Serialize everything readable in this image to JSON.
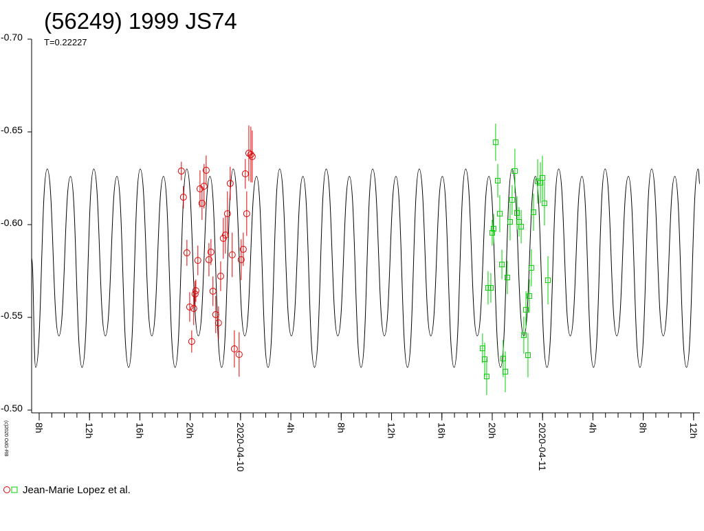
{
  "chart_data": {
    "type": "lightcurve",
    "title": "(56249) 1999 JS74",
    "subtitle": "T=0.22227",
    "credit": "(c)2020 OdG-RB",
    "xlim": [
      -16.6,
      36.5
    ],
    "ylim": [
      -0.5,
      -0.7
    ],
    "xticks": [
      {
        "value": -16,
        "label": "8h"
      },
      {
        "value": -12,
        "label": "12h"
      },
      {
        "value": -8,
        "label": "16h"
      },
      {
        "value": -4,
        "label": "20h"
      },
      {
        "value": 0,
        "label": "2020-04-10"
      },
      {
        "value": 4,
        "label": "4h"
      },
      {
        "value": 8,
        "label": "8h"
      },
      {
        "value": 12,
        "label": "12h"
      },
      {
        "value": 16,
        "label": "16h"
      },
      {
        "value": 20,
        "label": "20h"
      },
      {
        "value": 24,
        "label": "2020-04-11"
      },
      {
        "value": 28,
        "label": "4h"
      },
      {
        "value": 32,
        "label": "8h"
      },
      {
        "value": 36,
        "label": "12h"
      }
    ],
    "xminorticks": [
      -16,
      -15,
      -14,
      -13,
      -12,
      -11,
      -10,
      -9,
      -8,
      -7,
      -6,
      -5,
      -4,
      -3,
      -2,
      -1,
      0,
      1,
      2,
      3,
      4,
      5,
      6,
      7,
      8,
      9,
      10,
      11,
      12,
      13,
      14,
      15,
      16,
      17,
      18,
      19,
      20,
      21,
      22,
      23,
      24,
      25,
      26,
      27,
      28,
      29,
      30,
      31,
      32,
      33,
      34,
      35,
      36
    ],
    "yticks": [
      {
        "value": -0.7,
        "label": "-0.70"
      },
      {
        "value": -0.65,
        "label": "-0.65"
      },
      {
        "value": -0.6,
        "label": "-0.60"
      },
      {
        "value": -0.55,
        "label": "-0.55"
      },
      {
        "value": -0.5,
        "label": "-0.50"
      }
    ],
    "model": {
      "color": "#000000",
      "x": [
        -16.6,
        -16.28,
        -15.36,
        -14.43,
        -13.51,
        -12.59,
        -11.66,
        -10.74,
        -9.82,
        -8.89,
        -7.97,
        -7.05,
        -6.12,
        -5.2,
        -4.27,
        -3.35,
        -2.43,
        -1.5,
        -0.58,
        0.34,
        1.27,
        2.19,
        3.11,
        4.04,
        4.96,
        5.88,
        6.81,
        7.73,
        8.65,
        9.58,
        10.5,
        11.43,
        12.35,
        13.27,
        14.2,
        15.12,
        16.04,
        16.97,
        17.89,
        18.81,
        19.74,
        20.66,
        21.58,
        22.51,
        23.43,
        24.35,
        25.28,
        26.2,
        27.13,
        28.05,
        28.97,
        29.9,
        30.82,
        31.74,
        32.67,
        33.59,
        34.51,
        35.44,
        36.36,
        36.5
      ],
      "values": [
        -0.582,
        -0.523,
        -0.63,
        -0.54,
        -0.626,
        -0.523,
        -0.63,
        -0.54,
        -0.626,
        -0.523,
        -0.63,
        -0.54,
        -0.626,
        -0.523,
        -0.63,
        -0.54,
        -0.626,
        -0.523,
        -0.63,
        -0.54,
        -0.626,
        -0.523,
        -0.63,
        -0.54,
        -0.626,
        -0.523,
        -0.63,
        -0.54,
        -0.626,
        -0.523,
        -0.63,
        -0.54,
        -0.626,
        -0.523,
        -0.63,
        -0.54,
        -0.626,
        -0.523,
        -0.63,
        -0.54,
        -0.626,
        -0.523,
        -0.63,
        -0.54,
        -0.626,
        -0.523,
        -0.63,
        -0.54,
        -0.626,
        -0.523,
        -0.63,
        -0.54,
        -0.626,
        -0.523,
        -0.63,
        -0.54,
        -0.626,
        -0.523,
        -0.63,
        -0.622
      ]
    },
    "observations": {
      "name": "Jean-Marie Lopez et al.",
      "groups": [
        {
          "color": "#e00000",
          "marker": "circle",
          "x": [
            -4.7,
            -4.54,
            -4.26,
            -4.04,
            -3.88,
            -3.72,
            -3.61,
            -3.55,
            -3.39,
            -3.22,
            -3.06,
            -2.9,
            -2.73,
            -2.51,
            -2.35,
            -2.19,
            -1.97,
            -1.75,
            -1.58,
            -1.37,
            -1.2,
            -1.04,
            -0.82,
            -0.66,
            -0.49,
            -0.11,
            0.05,
            0.22,
            0.38,
            0.49,
            0.66,
            0.82,
            0.93
          ],
          "values": [
            -0.6289,
            -0.6148,
            -0.5848,
            -0.5556,
            -0.537,
            -0.5548,
            -0.5626,
            -0.5644,
            -0.5807,
            -0.6193,
            -0.6115,
            -0.6207,
            -0.6293,
            -0.5811,
            -0.5852,
            -0.5641,
            -0.5515,
            -0.547,
            -0.5722,
            -0.5926,
            -0.5944,
            -0.6059,
            -0.6222,
            -0.5837,
            -0.533,
            -0.53,
            -0.5811,
            -0.5867,
            -0.6274,
            -0.6059,
            -0.6385,
            -0.6378,
            -0.6367
          ],
          "errors": [
            0.005,
            0.006,
            0.007,
            0.008,
            0.006,
            0.009,
            0.007,
            0.006,
            0.008,
            0.01,
            0.009,
            0.012,
            0.008,
            0.009,
            0.007,
            0.008,
            0.01,
            0.009,
            0.008,
            0.011,
            0.01,
            0.012,
            0.009,
            0.012,
            0.01,
            0.012,
            0.011,
            0.009,
            0.008,
            0.012,
            0.015,
            0.015,
            0.014
          ]
        },
        {
          "color": "#00d000",
          "marker": "square",
          "x": [
            19.23,
            19.4,
            19.56,
            19.67,
            19.89,
            20.0,
            20.11,
            20.27,
            20.44,
            20.6,
            20.77,
            20.87,
            21.04,
            21.2,
            21.42,
            21.58,
            21.8,
            21.97,
            22.13,
            22.3,
            22.51,
            22.68,
            22.84,
            22.95,
            23.11,
            23.28,
            23.61,
            23.83,
            23.99,
            24.15,
            24.43
          ],
          "values": [
            -0.5333,
            -0.5274,
            -0.5181,
            -0.5659,
            -0.5659,
            -0.5956,
            -0.5978,
            -0.6444,
            -0.6237,
            -0.6059,
            -0.5785,
            -0.5278,
            -0.5207,
            -0.5715,
            -0.6015,
            -0.6133,
            -0.6289,
            -0.6063,
            -0.6015,
            -0.5989,
            -0.5404,
            -0.5541,
            -0.5296,
            -0.5615,
            -0.5767,
            -0.6067,
            -0.6233,
            -0.6226,
            -0.6252,
            -0.6115,
            -0.57
          ],
          "errors": [
            0.008,
            0.009,
            0.01,
            0.009,
            0.008,
            0.007,
            0.008,
            0.01,
            0.009,
            0.01,
            0.008,
            0.01,
            0.011,
            0.009,
            0.01,
            0.008,
            0.012,
            0.009,
            0.008,
            0.009,
            0.01,
            0.01,
            0.012,
            0.009,
            0.01,
            0.01,
            0.012,
            0.011,
            0.012,
            0.012,
            0.013
          ]
        }
      ]
    }
  }
}
